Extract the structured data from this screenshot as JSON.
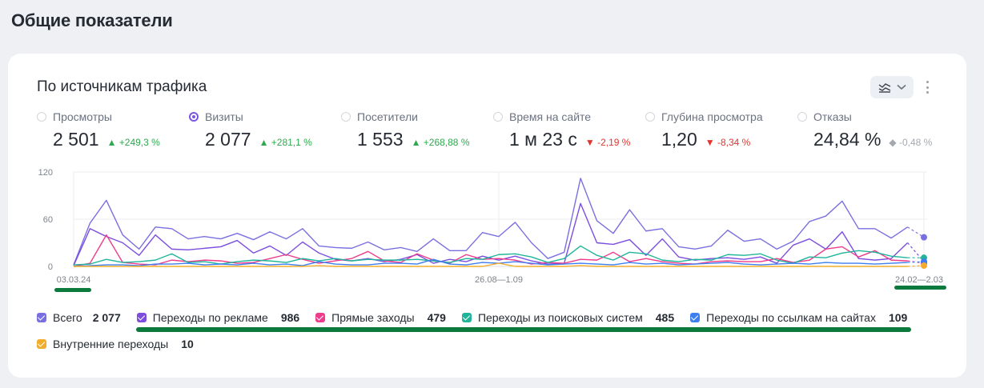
{
  "page": {
    "title": "Общие показатели"
  },
  "card": {
    "title": "По источникам трафика"
  },
  "metrics": [
    {
      "label": "Просмотры",
      "value": "2 501",
      "delta": "▲ +249,3 %",
      "trend": "up",
      "selected": false
    },
    {
      "label": "Визиты",
      "value": "2 077",
      "delta": "▲ +281,1 %",
      "trend": "up",
      "selected": true
    },
    {
      "label": "Посетители",
      "value": "1 553",
      "delta": "▲ +268,88 %",
      "trend": "up",
      "selected": false
    },
    {
      "label": "Время на сайте",
      "value": "1 м 23 с",
      "delta": "▼ -2,19 %",
      "trend": "down",
      "selected": false
    },
    {
      "label": "Глубина просмотра",
      "value": "1,20",
      "delta": "▼ -8,34 %",
      "trend": "down",
      "selected": false
    },
    {
      "label": "Отказы",
      "value": "24,84 %",
      "delta": "◆ -0,48 %",
      "trend": "neutral",
      "selected": false
    }
  ],
  "chart_data": {
    "type": "line",
    "y_ticks": [
      "120",
      "60",
      "0"
    ],
    "ylim": [
      0,
      120
    ],
    "x_tick_labels": [
      "03.03.24",
      "26.08—1.09",
      "24.02—2.03"
    ],
    "series": [
      {
        "name": "Всего",
        "color": "#7a6fe0",
        "values": [
          2,
          55,
          84,
          40,
          22,
          50,
          48,
          35,
          38,
          35,
          42,
          34,
          44,
          35,
          48,
          26,
          24,
          23,
          31,
          21,
          24,
          19,
          35,
          20,
          20,
          43,
          38,
          56,
          30,
          10,
          18,
          112,
          58,
          42,
          72,
          45,
          48,
          25,
          22,
          26,
          46,
          32,
          35,
          22,
          32,
          57,
          64,
          83,
          48,
          48,
          36,
          50,
          37
        ]
      },
      {
        "name": "Переходы по рекламе",
        "color": "#7c4ddf",
        "values": [
          1,
          48,
          38,
          30,
          14,
          40,
          22,
          21,
          23,
          25,
          33,
          17,
          26,
          14,
          31,
          17,
          9,
          7,
          10,
          6,
          9,
          15,
          4,
          9,
          6,
          13,
          8,
          13,
          7,
          3,
          4,
          80,
          30,
          28,
          34,
          14,
          35,
          12,
          8,
          10,
          11,
          9,
          12,
          4,
          27,
          35,
          22,
          44,
          10,
          8,
          10,
          30,
          6
        ]
      },
      {
        "name": "Прямые заходы",
        "color": "#ee3b8c",
        "values": [
          0,
          4,
          40,
          5,
          3,
          2,
          8,
          6,
          8,
          7,
          4,
          5,
          10,
          15,
          9,
          4,
          7,
          10,
          19,
          7,
          5,
          16,
          8,
          4,
          15,
          9,
          10,
          8,
          3,
          5,
          4,
          9,
          8,
          18,
          6,
          10,
          6,
          4,
          3,
          6,
          7,
          6,
          6,
          10,
          5,
          8,
          22,
          25,
          12,
          20,
          8,
          7,
          4
        ]
      },
      {
        "name": "Переходы из поисковых систем",
        "color": "#20b59b",
        "values": [
          2,
          3,
          9,
          5,
          6,
          8,
          16,
          5,
          6,
          3,
          6,
          8,
          7,
          5,
          10,
          7,
          10,
          7,
          9,
          8,
          8,
          9,
          7,
          5,
          10,
          9,
          15,
          16,
          12,
          5,
          10,
          26,
          14,
          8,
          18,
          16,
          8,
          6,
          9,
          8,
          15,
          14,
          16,
          8,
          4,
          12,
          11,
          17,
          20,
          18,
          13,
          11,
          11
        ]
      },
      {
        "name": "Переходы по ссылкам на сайтах",
        "color": "#3d7ef0",
        "values": [
          0,
          1,
          2,
          2,
          1,
          3,
          3,
          4,
          2,
          3,
          2,
          4,
          2,
          3,
          1,
          6,
          3,
          2,
          2,
          4,
          4,
          3,
          9,
          3,
          2,
          5,
          4,
          6,
          4,
          2,
          3,
          4,
          3,
          2,
          5,
          3,
          4,
          2,
          3,
          4,
          5,
          3,
          2,
          3,
          4,
          3,
          5,
          4,
          4,
          3,
          4,
          5,
          6
        ]
      },
      {
        "name": "Внутренние переходы",
        "color": "#f2ad2c",
        "values": [
          0,
          0,
          0,
          0,
          0,
          0,
          0,
          0,
          0,
          0,
          0,
          0,
          0,
          0,
          0,
          1,
          0,
          0,
          0,
          0,
          0,
          0,
          0,
          0,
          0,
          0,
          4,
          0,
          0,
          0,
          0,
          1,
          0,
          0,
          0,
          0,
          0,
          0,
          0,
          0,
          0,
          0,
          0,
          0,
          0,
          0,
          0,
          0,
          0,
          0,
          0,
          0,
          1
        ]
      }
    ]
  },
  "legend": [
    {
      "label": "Всего",
      "value": "2 077",
      "color": "#7a6fe0"
    },
    {
      "label": "Переходы по рекламе",
      "value": "986",
      "color": "#7c4ddf"
    },
    {
      "label": "Прямые заходы",
      "value": "479",
      "color": "#ee3b8c"
    },
    {
      "label": "Переходы из поисковых систем",
      "value": "485",
      "color": "#20b59b"
    },
    {
      "label": "Переходы по ссылкам на сайтах",
      "value": "109",
      "color": "#3d7ef0"
    },
    {
      "label": "Внутренние переходы",
      "value": "10",
      "color": "#f2ad2c"
    }
  ],
  "icons": {
    "chart_type": "line-chart-icon",
    "chevron": "chevron-down-icon",
    "more": "more-vertical-icon"
  },
  "colors": {
    "accent": "#7b57e0",
    "up": "#2fa84f",
    "down": "#e3342f",
    "highlight": "#0c7a3c"
  }
}
